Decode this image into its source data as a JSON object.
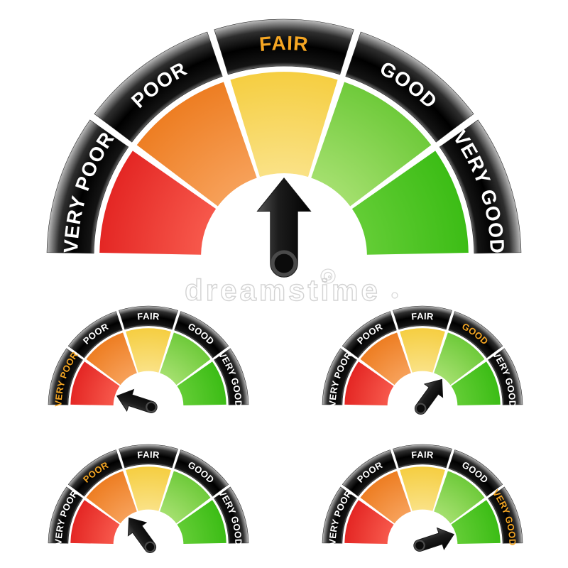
{
  "watermark": {
    "text": "dreamstime"
  },
  "palette": {
    "background": "#ffffff",
    "label": "#ffffff",
    "highlight_label": "#f5a623",
    "ring_dark": "#000000",
    "ring_sheen": "#bdbdbd",
    "pointer": "#111111",
    "watermark_stroke": "#c9c9c9"
  },
  "categories": [
    "VERY POOR",
    "POOR",
    "FAIR",
    "GOOD",
    "VERY GOOD"
  ],
  "segment_gradients": {
    "VERY POOR": [
      "#f7594c",
      "#e32422"
    ],
    "POOR": [
      "#f7a15a",
      "#ed7c20"
    ],
    "FAIR": [
      "#fae287",
      "#f5cd3e"
    ],
    "GOOD": [
      "#a5e06f",
      "#6cc938"
    ],
    "VERY GOOD": [
      "#64cd36",
      "#3abc14"
    ]
  },
  "chart_data": [
    {
      "type": "gauge",
      "id": "main",
      "size": "large",
      "categories": [
        "VERY POOR",
        "POOR",
        "FAIR",
        "GOOD",
        "VERY GOOD"
      ],
      "segment_colors": [
        "#e32422",
        "#ed7c20",
        "#f5cd3e",
        "#6cc938",
        "#3abc14"
      ],
      "pointer_value": "FAIR",
      "highlighted_category": "FAIR",
      "arrow_angle_deg": 90
    },
    {
      "type": "gauge",
      "id": "small-top-left",
      "size": "small",
      "categories": [
        "VERY POOR",
        "POOR",
        "FAIR",
        "GOOD",
        "VERY GOOD"
      ],
      "segment_colors": [
        "#e32422",
        "#ed7c20",
        "#f5cd3e",
        "#6cc938",
        "#3abc14"
      ],
      "pointer_value": "VERY POOR",
      "highlighted_category": "VERY POOR",
      "arrow_angle_deg": 162
    },
    {
      "type": "gauge",
      "id": "small-top-right",
      "size": "small",
      "categories": [
        "VERY POOR",
        "POOR",
        "FAIR",
        "GOOD",
        "VERY GOOD"
      ],
      "segment_colors": [
        "#e32422",
        "#ed7c20",
        "#f5cd3e",
        "#6cc938",
        "#3abc14"
      ],
      "pointer_value": "GOOD",
      "highlighted_category": "GOOD",
      "arrow_angle_deg": 54
    },
    {
      "type": "gauge",
      "id": "small-bottom-left",
      "size": "small",
      "categories": [
        "VERY POOR",
        "POOR",
        "FAIR",
        "GOOD",
        "VERY GOOD"
      ],
      "segment_colors": [
        "#e32422",
        "#ed7c20",
        "#f5cd3e",
        "#6cc938",
        "#3abc14"
      ],
      "pointer_value": "POOR",
      "highlighted_category": "POOR",
      "arrow_angle_deg": 126
    },
    {
      "type": "gauge",
      "id": "small-bottom-right",
      "size": "small",
      "categories": [
        "VERY POOR",
        "POOR",
        "FAIR",
        "GOOD",
        "VERY GOOD"
      ],
      "segment_colors": [
        "#e32422",
        "#ed7c20",
        "#f5cd3e",
        "#6cc938",
        "#3abc14"
      ],
      "pointer_value": "VERY GOOD",
      "highlighted_category": "VERY GOOD",
      "arrow_angle_deg": 18
    }
  ]
}
